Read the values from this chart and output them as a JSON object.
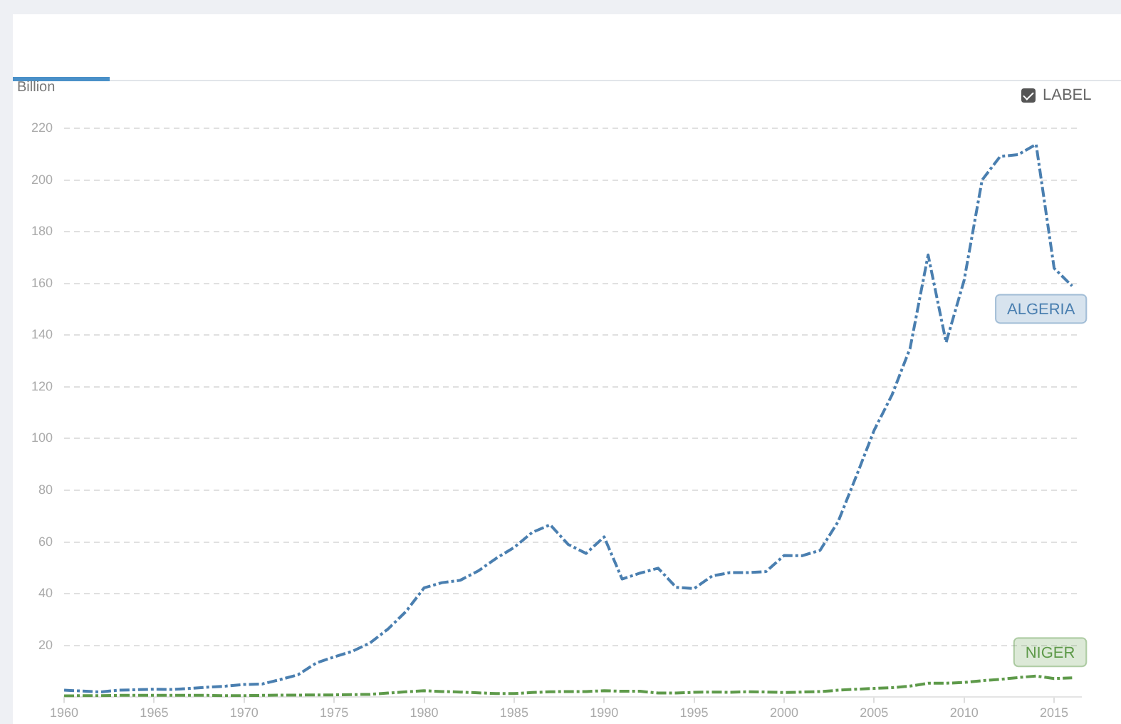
{
  "chart_data": {
    "type": "line",
    "ylabel": "Billion",
    "annotations": [
      "LABEL"
    ],
    "x": [
      1960,
      1961,
      1962,
      1963,
      1964,
      1965,
      1966,
      1967,
      1968,
      1969,
      1970,
      1971,
      1972,
      1973,
      1974,
      1975,
      1976,
      1977,
      1978,
      1979,
      1980,
      1981,
      1982,
      1983,
      1984,
      1985,
      1986,
      1987,
      1988,
      1989,
      1990,
      1991,
      1992,
      1993,
      1994,
      1995,
      1996,
      1997,
      1998,
      1999,
      2000,
      2001,
      2002,
      2003,
      2004,
      2005,
      2006,
      2007,
      2008,
      2009,
      2010,
      2011,
      2012,
      2013,
      2014,
      2015,
      2016
    ],
    "series": [
      {
        "name": "ALGERIA",
        "color": "#4a7fb0",
        "values": [
          2.7,
          2.4,
          2.0,
          2.7,
          2.9,
          3.1,
          3.0,
          3.4,
          3.9,
          4.3,
          4.9,
          5.1,
          6.8,
          8.7,
          13.2,
          15.6,
          17.7,
          21.0,
          26.4,
          33.2,
          42.3,
          44.3,
          45.2,
          48.8,
          53.7,
          57.9,
          63.7,
          66.7,
          59.1,
          55.6,
          62.0,
          45.7,
          48.0,
          49.9,
          42.5,
          42.0,
          46.9,
          48.2,
          48.2,
          48.6,
          54.8,
          54.7,
          56.8,
          67.9,
          85.3,
          103.2,
          117.0,
          135.0,
          171.0,
          137.2,
          161.2,
          200.0,
          209.1,
          209.8,
          213.8,
          165.9,
          159.0
        ]
      },
      {
        "name": "NIGER",
        "color": "#5e9a4a",
        "values": [
          0.5,
          0.6,
          0.6,
          0.7,
          0.7,
          0.7,
          0.7,
          0.7,
          0.7,
          0.6,
          0.6,
          0.7,
          0.8,
          0.8,
          0.9,
          0.9,
          1.0,
          1.1,
          1.6,
          2.1,
          2.5,
          2.2,
          2.0,
          1.7,
          1.4,
          1.4,
          1.8,
          2.1,
          2.2,
          2.2,
          2.5,
          2.3,
          2.3,
          1.6,
          1.6,
          1.9,
          2.0,
          1.9,
          2.1,
          2.0,
          1.8,
          2.0,
          2.2,
          2.7,
          3.1,
          3.4,
          3.7,
          4.3,
          5.4,
          5.4,
          5.7,
          6.4,
          6.9,
          7.6,
          8.2,
          7.2,
          7.5
        ]
      }
    ],
    "xlim": [
      1960,
      2016.5
    ],
    "xticks": [
      1960,
      1965,
      1970,
      1975,
      1980,
      1985,
      1990,
      1995,
      2000,
      2005,
      2010,
      2015
    ],
    "ylim": [
      0,
      220
    ],
    "yticks": [
      20,
      40,
      60,
      80,
      100,
      120,
      140,
      160,
      180,
      200,
      220
    ],
    "grid": "y",
    "line_style": "dashed",
    "legend": false
  }
}
